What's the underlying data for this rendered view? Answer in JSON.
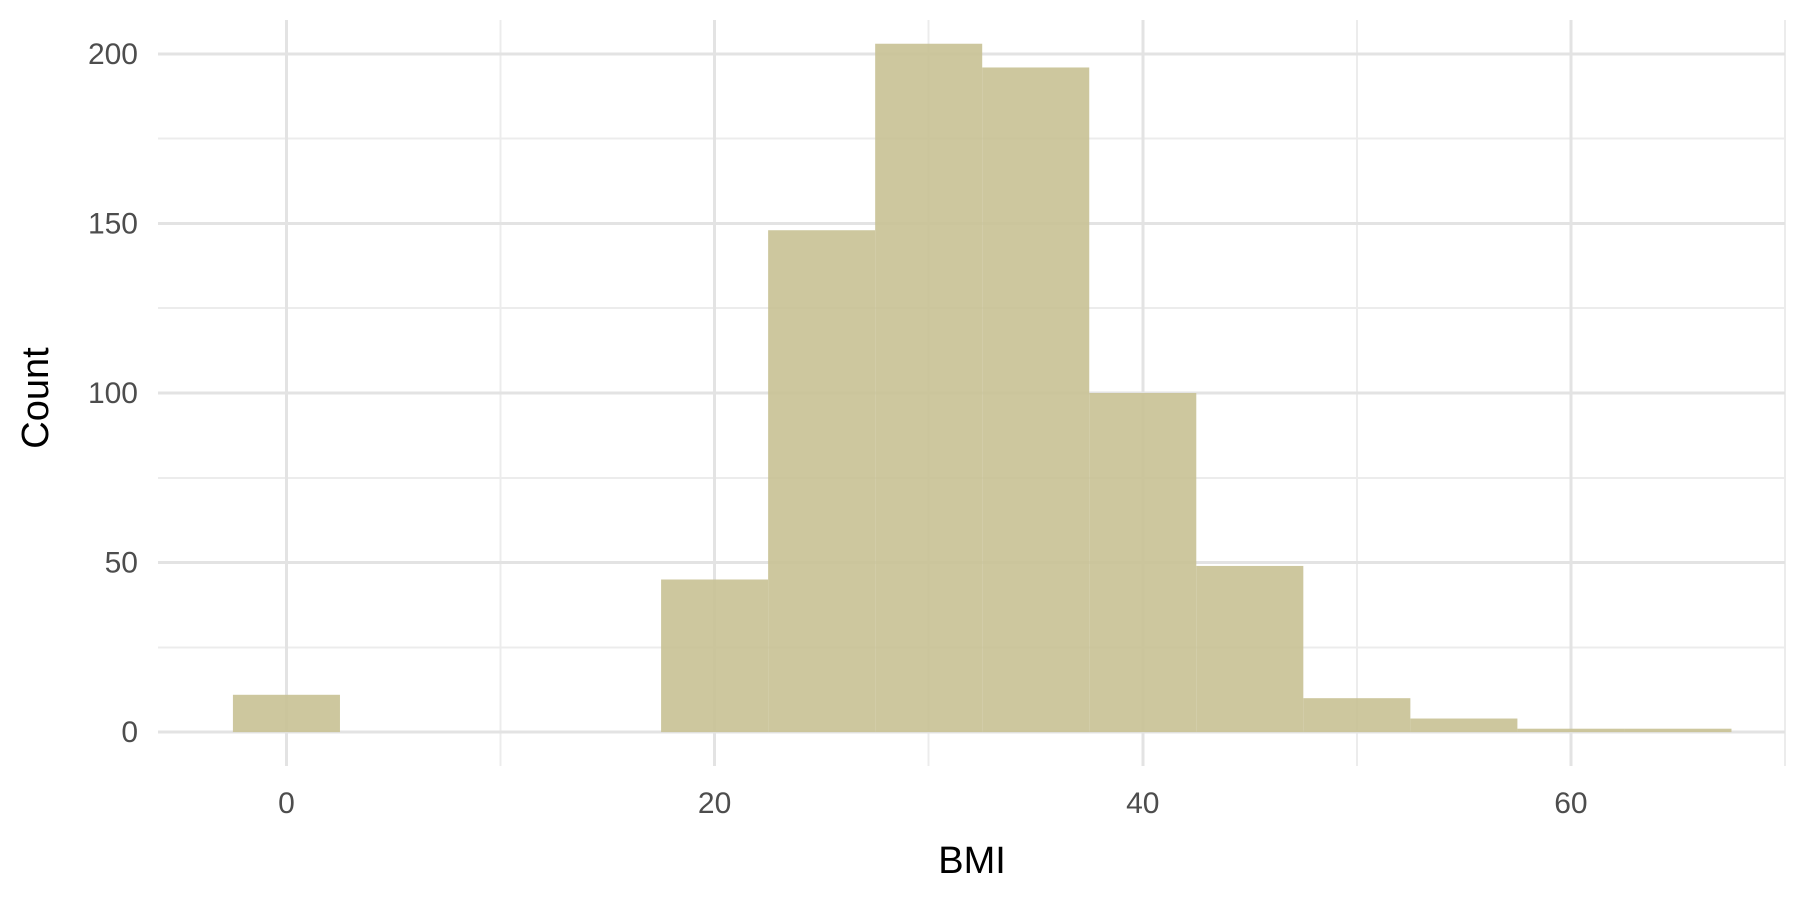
{
  "chart_data": {
    "type": "bar",
    "title": "",
    "xlabel": "BMI",
    "ylabel": "Count",
    "bin_width": 5,
    "bins": [
      {
        "x": 0,
        "count": 11
      },
      {
        "x": 20,
        "count": 45
      },
      {
        "x": 25,
        "count": 148
      },
      {
        "x": 30,
        "count": 203
      },
      {
        "x": 35,
        "count": 196
      },
      {
        "x": 40,
        "count": 100
      },
      {
        "x": 45,
        "count": 49
      },
      {
        "x": 50,
        "count": 10
      },
      {
        "x": 55,
        "count": 4
      },
      {
        "x": 60,
        "count": 1
      },
      {
        "x": 65,
        "count": 1
      }
    ],
    "xlim": [
      -6,
      70
    ],
    "ylim": [
      -10,
      210
    ],
    "x_ticks": [
      0,
      20,
      40,
      60
    ],
    "y_ticks": [
      0,
      50,
      100,
      150,
      200
    ],
    "x_minor_ticks": [
      10,
      30,
      50,
      70
    ],
    "y_minor_ticks": [
      25,
      75,
      125,
      175
    ],
    "x_tick_labels": [
      "0",
      "20",
      "40",
      "60"
    ],
    "y_tick_labels": [
      "0",
      "50",
      "100",
      "150",
      "200"
    ],
    "grid": true,
    "legend": "none",
    "bar_color": "#c8c193",
    "bar_opacity": 0.9
  }
}
